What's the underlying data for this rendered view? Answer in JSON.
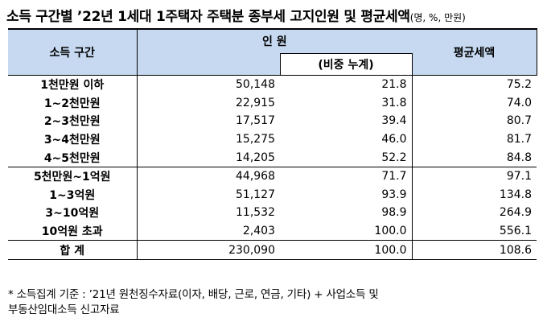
{
  "title": {
    "main": "소득 구간별 ’22년 1세대 1주택자 주택분 종부세 고지인원 및 평균세액",
    "unit": "(명, %, 만원)"
  },
  "table": {
    "headers": {
      "bracket": "소득 구간",
      "count": "인 원",
      "cumulative": "(비중 누계)",
      "average": "평균세액"
    },
    "rows": [
      {
        "bracket": "1천만원 이하",
        "count": "50,148",
        "cumulative": "21.8",
        "average": "75.2"
      },
      {
        "bracket": "1~2천만원",
        "count": "22,915",
        "cumulative": "31.8",
        "average": "74.0"
      },
      {
        "bracket": "2~3천만원",
        "count": "17,517",
        "cumulative": "39.4",
        "average": "80.7"
      },
      {
        "bracket": "3~4천만원",
        "count": "15,275",
        "cumulative": "46.0",
        "average": "81.7"
      },
      {
        "bracket": "4~5천만원",
        "count": "14,205",
        "cumulative": "52.2",
        "average": "84.8"
      },
      {
        "bracket": "5천만원~1억원",
        "count": "44,968",
        "cumulative": "71.7",
        "average": "97.1"
      },
      {
        "bracket": "1~3억원",
        "count": "51,127",
        "cumulative": "93.9",
        "average": "134.8"
      },
      {
        "bracket": "3~10억원",
        "count": "11,532",
        "cumulative": "98.9",
        "average": "264.9"
      },
      {
        "bracket": "10억원 초과",
        "count": "2,403",
        "cumulative": "100.0",
        "average": "556.1"
      }
    ],
    "total": {
      "bracket": "합 계",
      "count": "230,090",
      "cumulative": "100.0",
      "average": "108.6"
    }
  },
  "footnote": {
    "line1": "* 소득집계 기준 : ’21년 원천징수자료(이자, 배당, 근로, 연금, 기타) + 사업소득 및",
    "line2": "부동산임대소득 신고자료"
  }
}
